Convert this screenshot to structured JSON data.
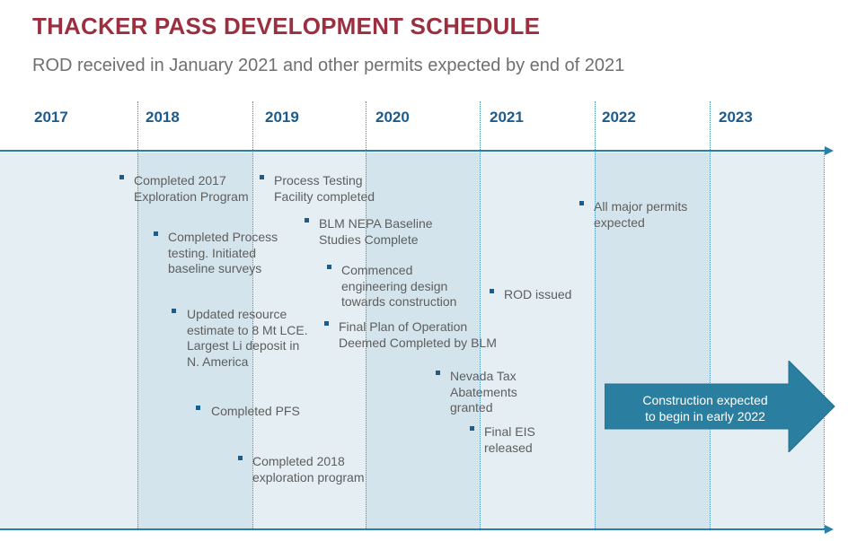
{
  "title": "THACKER PASS DEVELOPMENT SCHEDULE",
  "subtitle": "ROD received in January 2021 and other permits expected by end of 2021",
  "colors": {
    "title": "#9c2f3f",
    "year_label": "#1d5b8c",
    "band_light": "#e4eef3",
    "band_dark": "#d4e4ec",
    "axis": "#2a7fa8",
    "bullet": "#1a5e8e",
    "arrow_fill": "#2a7fa0"
  },
  "years": [
    "2017",
    "2018",
    "2019",
    "2020",
    "2021",
    "2022",
    "2023"
  ],
  "events": [
    {
      "text": "Completed 2017\nExploration Program"
    },
    {
      "text": "Completed Process\ntesting. Initiated\nbaseline surveys"
    },
    {
      "text": "Updated resource\nestimate to 8 Mt LCE.\nLargest Li deposit in\nN. America"
    },
    {
      "text": "Completed PFS"
    },
    {
      "text": "Completed 2018\nexploration program"
    },
    {
      "text": "Process Testing\nFacility completed"
    },
    {
      "text": "BLM NEPA Baseline\nStudies Complete"
    },
    {
      "text": "Commenced\nengineering design\ntowards construction"
    },
    {
      "text": "Final Plan of Operation\nDeemed Completed by BLM"
    },
    {
      "text": "Nevada Tax\nAbatements\ngranted"
    },
    {
      "text": "Final EIS\nreleased"
    },
    {
      "text": "ROD issued"
    },
    {
      "text": "All major permits\nexpected"
    }
  ],
  "callout": {
    "text": "Construction expected\nto begin in early 2022"
  }
}
